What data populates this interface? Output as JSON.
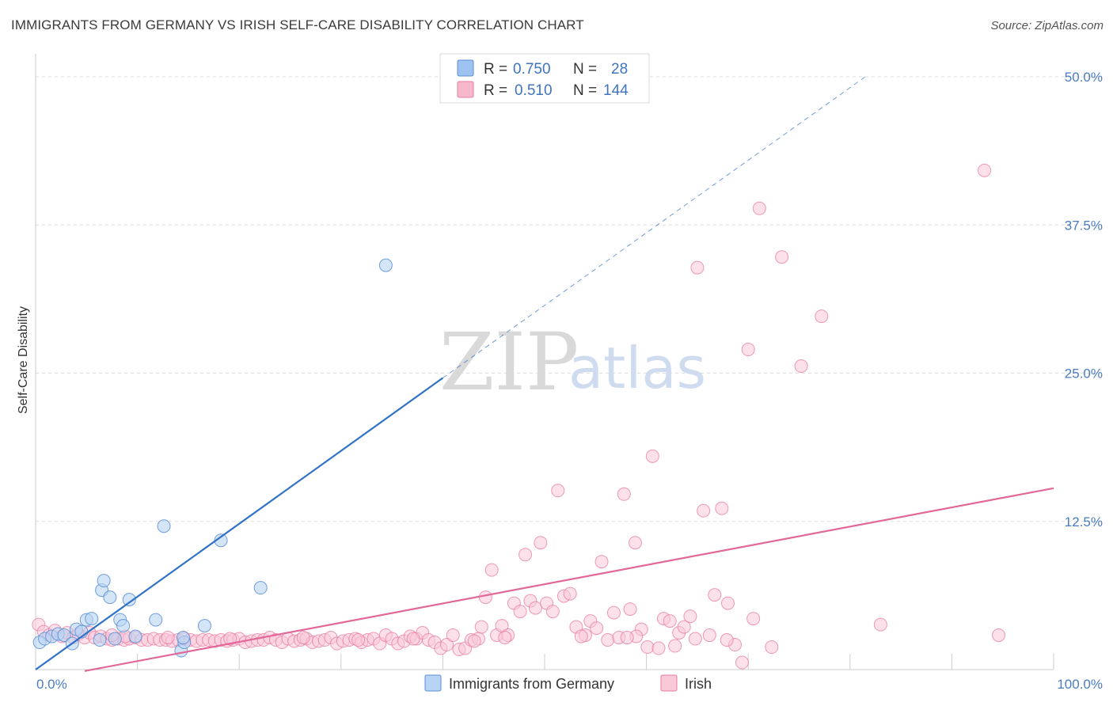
{
  "header": {
    "title": "IMMIGRANTS FROM GERMANY VS IRISH SELF-CARE DISABILITY CORRELATION CHART",
    "source": "Source: ZipAtlas.com"
  },
  "watermark": {
    "zip": "ZIP",
    "atlas": "atlas"
  },
  "legend": {
    "rows": [
      {
        "r_label": "R =",
        "r_value": "0.750",
        "n_label": "N =",
        "n_value": "28",
        "color": "#9fc3f0"
      },
      {
        "r_label": "R =",
        "r_value": "0.510",
        "n_label": "N =",
        "n_value": "144",
        "color": "#f6b8cb"
      }
    ]
  },
  "bottom_legend": {
    "germany": "Immigrants from Germany",
    "irish": "Irish"
  },
  "chart_data": {
    "type": "scatter",
    "xlabel": "",
    "ylabel": "Self-Care Disability",
    "xlim": [
      0,
      100
    ],
    "ylim": [
      0,
      50
    ],
    "x_tick_labels": [
      "0.0%",
      "100.0%"
    ],
    "y_ticks": [
      12.5,
      25.0,
      37.5,
      50.0
    ],
    "y_tick_labels": [
      "12.5%",
      "25.0%",
      "37.5%",
      "50.0%"
    ],
    "grid": true,
    "legend_position": "top-center",
    "colors": {
      "germany": "#5b8fd6",
      "germany_fill": "#b8d3f3",
      "irish": "#e87aa0",
      "irish_fill": "#f9c9d8",
      "germany_line": "#2f72c8",
      "irish_line": "#e2689a"
    },
    "series": [
      {
        "name": "Immigrants from Germany",
        "trend": {
          "x0": 0,
          "y0": 0,
          "x1": 40,
          "y1": 24.6,
          "dash_to_x": 81.5,
          "dash_to_y": 50
        },
        "points": [
          [
            0.4,
            2.3
          ],
          [
            0.9,
            2.6
          ],
          [
            1.6,
            2.8
          ],
          [
            2.2,
            3.0
          ],
          [
            2.8,
            2.9
          ],
          [
            3.6,
            2.2
          ],
          [
            4.0,
            3.4
          ],
          [
            4.5,
            3.2
          ],
          [
            5.0,
            4.2
          ],
          [
            5.5,
            4.3
          ],
          [
            6.3,
            2.5
          ],
          [
            6.5,
            6.7
          ],
          [
            6.7,
            7.5
          ],
          [
            7.3,
            6.1
          ],
          [
            7.8,
            2.6
          ],
          [
            8.3,
            4.2
          ],
          [
            8.6,
            3.7
          ],
          [
            9.2,
            5.9
          ],
          [
            9.8,
            2.8
          ],
          [
            11.8,
            4.2
          ],
          [
            12.6,
            12.1
          ],
          [
            14.3,
            1.6
          ],
          [
            14.6,
            2.3
          ],
          [
            16.6,
            3.7
          ],
          [
            18.2,
            10.9
          ],
          [
            22.1,
            6.9
          ],
          [
            34.4,
            34.1
          ],
          [
            14.5,
            2.7
          ]
        ]
      },
      {
        "name": "Irish",
        "trend": {
          "x0": 0,
          "y0": -0.9,
          "x1": 100,
          "y1": 15.3
        },
        "points": [
          [
            0.3,
            3.8
          ],
          [
            0.8,
            3.2
          ],
          [
            1.3,
            2.9
          ],
          [
            1.9,
            3.3
          ],
          [
            2.6,
            2.8
          ],
          [
            3.1,
            3.1
          ],
          [
            3.7,
            2.7
          ],
          [
            4.2,
            3.0
          ],
          [
            4.8,
            2.7
          ],
          [
            5.3,
            3.1
          ],
          [
            5.8,
            2.7
          ],
          [
            6.4,
            2.8
          ],
          [
            7.0,
            2.6
          ],
          [
            7.5,
            2.5
          ],
          [
            8.1,
            2.6
          ],
          [
            8.7,
            2.5
          ],
          [
            9.2,
            2.6
          ],
          [
            9.8,
            2.7
          ],
          [
            10.4,
            2.5
          ],
          [
            11.0,
            2.5
          ],
          [
            11.6,
            2.6
          ],
          [
            12.2,
            2.5
          ],
          [
            12.8,
            2.5
          ],
          [
            13.4,
            2.4
          ],
          [
            14.0,
            2.5
          ],
          [
            14.6,
            2.6
          ],
          [
            15.2,
            2.5
          ],
          [
            15.8,
            2.4
          ],
          [
            16.4,
            2.5
          ],
          [
            17.0,
            2.5
          ],
          [
            17.6,
            2.4
          ],
          [
            18.2,
            2.5
          ],
          [
            18.8,
            2.4
          ],
          [
            19.4,
            2.5
          ],
          [
            20.0,
            2.6
          ],
          [
            20.6,
            2.3
          ],
          [
            21.2,
            2.4
          ],
          [
            21.8,
            2.5
          ],
          [
            22.4,
            2.5
          ],
          [
            23.0,
            2.7
          ],
          [
            23.6,
            2.5
          ],
          [
            24.2,
            2.3
          ],
          [
            24.8,
            2.6
          ],
          [
            25.4,
            2.4
          ],
          [
            26.0,
            2.5
          ],
          [
            26.6,
            2.6
          ],
          [
            27.2,
            2.3
          ],
          [
            27.8,
            2.4
          ],
          [
            28.4,
            2.5
          ],
          [
            29.0,
            2.7
          ],
          [
            29.6,
            2.2
          ],
          [
            30.2,
            2.4
          ],
          [
            30.8,
            2.5
          ],
          [
            31.4,
            2.6
          ],
          [
            32.0,
            2.3
          ],
          [
            32.6,
            2.5
          ],
          [
            33.2,
            2.6
          ],
          [
            33.8,
            2.2
          ],
          [
            34.4,
            2.9
          ],
          [
            35.0,
            2.6
          ],
          [
            35.6,
            2.2
          ],
          [
            36.2,
            2.4
          ],
          [
            36.8,
            2.8
          ],
          [
            37.4,
            2.6
          ],
          [
            38.0,
            3.1
          ],
          [
            38.6,
            2.5
          ],
          [
            39.2,
            2.3
          ],
          [
            39.8,
            1.8
          ],
          [
            40.4,
            2.1
          ],
          [
            41.0,
            2.9
          ],
          [
            41.6,
            1.7
          ],
          [
            42.2,
            1.8
          ],
          [
            42.8,
            2.5
          ],
          [
            43.5,
            2.6
          ],
          [
            43.8,
            3.6
          ],
          [
            44.2,
            6.1
          ],
          [
            44.8,
            8.4
          ],
          [
            45.3,
            2.9
          ],
          [
            45.8,
            3.7
          ],
          [
            46.4,
            2.9
          ],
          [
            47.0,
            5.6
          ],
          [
            47.6,
            4.9
          ],
          [
            48.1,
            9.7
          ],
          [
            48.6,
            5.8
          ],
          [
            49.1,
            5.2
          ],
          [
            49.6,
            10.7
          ],
          [
            50.2,
            5.6
          ],
          [
            50.8,
            4.9
          ],
          [
            51.3,
            15.1
          ],
          [
            51.9,
            6.2
          ],
          [
            52.5,
            6.4
          ],
          [
            53.1,
            3.6
          ],
          [
            54.0,
            2.9
          ],
          [
            54.5,
            4.1
          ],
          [
            55.1,
            3.5
          ],
          [
            55.6,
            9.1
          ],
          [
            56.2,
            2.5
          ],
          [
            56.8,
            4.8
          ],
          [
            57.3,
            2.7
          ],
          [
            57.8,
            14.8
          ],
          [
            58.4,
            5.1
          ],
          [
            58.9,
            10.7
          ],
          [
            59.5,
            3.4
          ],
          [
            60.1,
            1.9
          ],
          [
            60.6,
            18.0
          ],
          [
            61.2,
            1.8
          ],
          [
            61.7,
            4.3
          ],
          [
            62.3,
            4.1
          ],
          [
            62.8,
            2.0
          ],
          [
            63.2,
            3.1
          ],
          [
            63.7,
            3.6
          ],
          [
            64.3,
            4.5
          ],
          [
            65.0,
            33.9
          ],
          [
            65.6,
            13.4
          ],
          [
            66.2,
            2.9
          ],
          [
            66.7,
            6.3
          ],
          [
            67.4,
            13.6
          ],
          [
            68.0,
            5.6
          ],
          [
            68.7,
            2.1
          ],
          [
            69.4,
            0.6
          ],
          [
            70.0,
            27.0
          ],
          [
            70.5,
            4.3
          ],
          [
            71.1,
            38.9
          ],
          [
            72.3,
            1.9
          ],
          [
            73.3,
            34.8
          ],
          [
            75.2,
            25.6
          ],
          [
            77.2,
            29.8
          ],
          [
            83.0,
            3.8
          ],
          [
            93.2,
            42.1
          ],
          [
            94.6,
            2.9
          ],
          [
            7.5,
            2.9
          ],
          [
            8.8,
            2.8
          ],
          [
            13.0,
            2.7
          ],
          [
            19.1,
            2.6
          ],
          [
            26.3,
            2.7
          ],
          [
            31.7,
            2.5
          ],
          [
            37.1,
            2.6
          ],
          [
            43.1,
            2.4
          ],
          [
            46.1,
            2.7
          ],
          [
            53.6,
            2.8
          ],
          [
            59.0,
            2.8
          ],
          [
            64.8,
            2.6
          ],
          [
            67.9,
            2.5
          ],
          [
            58.1,
            2.7
          ]
        ]
      }
    ]
  }
}
